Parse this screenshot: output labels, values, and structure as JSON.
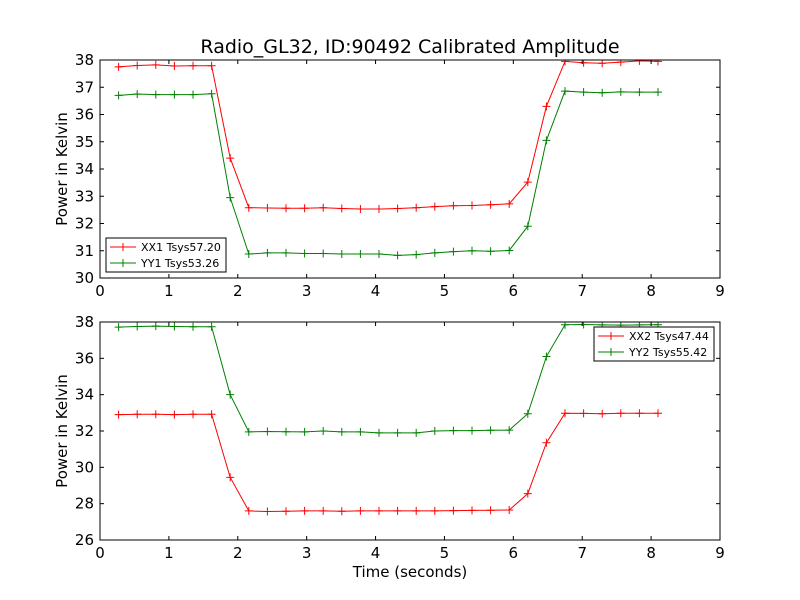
{
  "chart_data": [
    {
      "type": "line",
      "title": "Radio_GL32, ID:90492 Calibrated Amplitude",
      "xlabel": "",
      "ylabel": "Power in Kelvin",
      "xlim": [
        0,
        9
      ],
      "ylim": [
        30,
        38
      ],
      "xticks": [
        "0",
        "1",
        "2",
        "3",
        "4",
        "5",
        "6",
        "7",
        "8",
        "9"
      ],
      "yticks": [
        "30",
        "31",
        "32",
        "33",
        "34",
        "35",
        "36",
        "37",
        "38"
      ],
      "grid": false,
      "legend_position": "lower-left",
      "x": [
        0.27,
        0.54,
        0.81,
        1.08,
        1.35,
        1.62,
        1.89,
        2.16,
        2.43,
        2.7,
        2.97,
        3.24,
        3.51,
        3.78,
        4.05,
        4.32,
        4.59,
        4.86,
        5.13,
        5.4,
        5.67,
        5.94,
        6.21,
        6.48,
        6.75,
        7.02,
        7.29,
        7.56,
        7.83,
        8.1
      ],
      "series": [
        {
          "name": "XX1 Tsys57.20",
          "color": "#ff0000",
          "values": [
            37.75,
            37.8,
            37.82,
            37.78,
            37.79,
            37.79,
            34.4,
            32.58,
            32.57,
            32.56,
            32.56,
            32.58,
            32.55,
            32.53,
            32.53,
            32.55,
            32.58,
            32.62,
            32.65,
            32.66,
            32.69,
            32.72,
            33.52,
            36.3,
            37.95,
            37.9,
            37.88,
            37.92,
            37.97,
            37.95
          ]
        },
        {
          "name": "YY1 Tsys53.26",
          "color": "#008000",
          "values": [
            36.7,
            36.75,
            36.73,
            36.73,
            36.73,
            36.76,
            32.95,
            30.88,
            30.92,
            30.92,
            30.9,
            30.9,
            30.88,
            30.88,
            30.88,
            30.83,
            30.86,
            30.92,
            30.97,
            31.0,
            30.98,
            31.01,
            31.9,
            35.05,
            36.86,
            36.82,
            36.8,
            36.83,
            36.82,
            36.82
          ]
        }
      ]
    },
    {
      "type": "line",
      "title": "",
      "xlabel": "Time (seconds)",
      "ylabel": "Power in Kelvin",
      "xlim": [
        0,
        9
      ],
      "ylim": [
        26,
        38
      ],
      "xticks": [
        "0",
        "1",
        "2",
        "3",
        "4",
        "5",
        "6",
        "7",
        "8",
        "9"
      ],
      "yticks": [
        "26",
        "28",
        "30",
        "32",
        "34",
        "36",
        "38"
      ],
      "grid": false,
      "legend_position": "top-right",
      "x": [
        0.27,
        0.54,
        0.81,
        1.08,
        1.35,
        1.62,
        1.89,
        2.16,
        2.43,
        2.7,
        2.97,
        3.24,
        3.51,
        3.78,
        4.05,
        4.32,
        4.59,
        4.86,
        5.13,
        5.4,
        5.67,
        5.94,
        6.21,
        6.48,
        6.75,
        7.02,
        7.29,
        7.56,
        7.83,
        8.1
      ],
      "series": [
        {
          "name": "XX2 Tsys47.44",
          "color": "#ff0000",
          "values": [
            32.9,
            32.92,
            32.92,
            32.9,
            32.92,
            32.92,
            29.45,
            27.6,
            27.57,
            27.58,
            27.6,
            27.6,
            27.58,
            27.6,
            27.6,
            27.6,
            27.6,
            27.6,
            27.62,
            27.63,
            27.64,
            27.65,
            28.55,
            31.35,
            32.98,
            32.97,
            32.95,
            32.98,
            32.98,
            32.98
          ]
        },
        {
          "name": "YY2 Tsys55.42",
          "color": "#008000",
          "values": [
            37.72,
            37.75,
            37.77,
            37.75,
            37.74,
            37.74,
            34.0,
            31.95,
            31.97,
            31.96,
            31.95,
            32.0,
            31.95,
            31.95,
            31.9,
            31.9,
            31.9,
            32.0,
            32.02,
            32.02,
            32.04,
            32.05,
            32.95,
            36.1,
            37.85,
            37.86,
            37.84,
            37.83,
            37.84,
            37.85
          ]
        }
      ]
    }
  ]
}
